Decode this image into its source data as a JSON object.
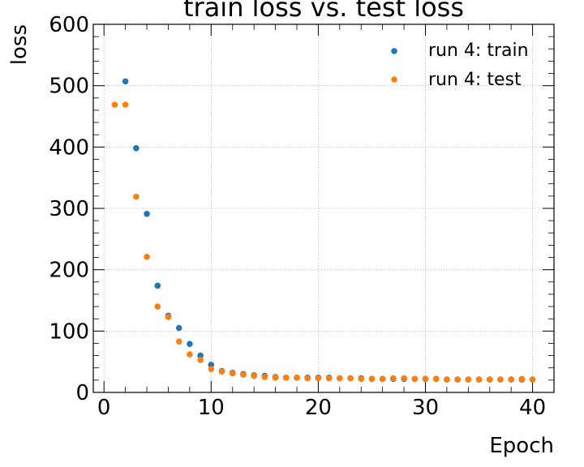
{
  "chart_data": {
    "type": "scatter",
    "title": "train loss vs. test loss",
    "xlabel": "Epoch",
    "ylabel": "loss",
    "xlim": [
      -1,
      42
    ],
    "ylim": [
      0,
      600
    ],
    "x_ticks": [
      0,
      10,
      20,
      30,
      40
    ],
    "y_ticks": [
      0,
      100,
      200,
      300,
      400,
      500,
      600
    ],
    "grid": true,
    "legend_position": "top-right",
    "series": [
      {
        "name": "run 4: train",
        "color": "#1f77b4",
        "x": [
          2,
          3,
          4,
          5,
          6,
          7,
          8,
          9,
          10,
          11,
          12,
          13,
          14,
          15,
          16,
          17,
          18,
          19,
          20,
          21,
          22,
          23,
          24,
          25,
          26,
          27,
          28,
          29,
          30,
          31,
          32,
          33,
          34,
          35,
          36,
          37,
          38,
          39,
          40
        ],
        "y": [
          507,
          398,
          291,
          174,
          125,
          105,
          79,
          60,
          45,
          35,
          32,
          30,
          28,
          27,
          25,
          24,
          24,
          24,
          24,
          24,
          23,
          23,
          23,
          22,
          22,
          22,
          22,
          22,
          22,
          22,
          21,
          21,
          21,
          21,
          21,
          21,
          21,
          21,
          21
        ]
      },
      {
        "name": "run 4: test",
        "color": "#ff7f0e",
        "x": [
          1,
          2,
          3,
          4,
          5,
          6,
          7,
          8,
          9,
          10,
          11,
          12,
          13,
          14,
          15,
          16,
          17,
          18,
          19,
          20,
          21,
          22,
          23,
          24,
          25,
          26,
          27,
          28,
          29,
          30,
          31,
          32,
          33,
          34,
          35,
          36,
          37,
          38,
          39,
          40
        ],
        "y": [
          469,
          469,
          319,
          221,
          140,
          123,
          83,
          62,
          53,
          38,
          34,
          31,
          29,
          27,
          25,
          24,
          24,
          24,
          23,
          23,
          23,
          23,
          23,
          22,
          22,
          22,
          23,
          23,
          22,
          22,
          22,
          21,
          21,
          21,
          21,
          21,
          21,
          21,
          22,
          21
        ]
      }
    ]
  }
}
